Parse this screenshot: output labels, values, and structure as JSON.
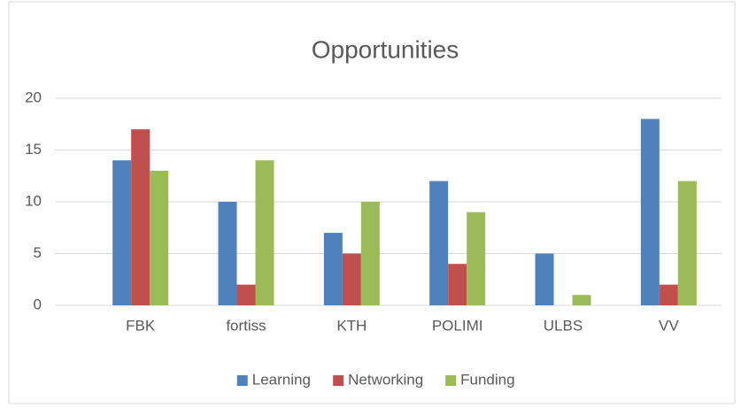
{
  "chart_data": {
    "type": "bar",
    "title": "Opportunities",
    "categories": [
      "FBK",
      "fortiss",
      "KTH",
      "POLIMI",
      "ULBS",
      "VV"
    ],
    "series": [
      {
        "name": "Learning",
        "color": "#4f81bd",
        "values": [
          14,
          10,
          7,
          12,
          5,
          18
        ]
      },
      {
        "name": "Networking",
        "color": "#c0504d",
        "values": [
          17,
          2,
          5,
          4,
          0,
          2
        ]
      },
      {
        "name": "Funding",
        "color": "#9bbb59",
        "values": [
          13,
          14,
          10,
          9,
          1,
          12
        ]
      }
    ],
    "ylim": [
      0,
      20
    ],
    "yticks": [
      0,
      5,
      10,
      15,
      20
    ],
    "grid": true,
    "legend": "bottom"
  }
}
